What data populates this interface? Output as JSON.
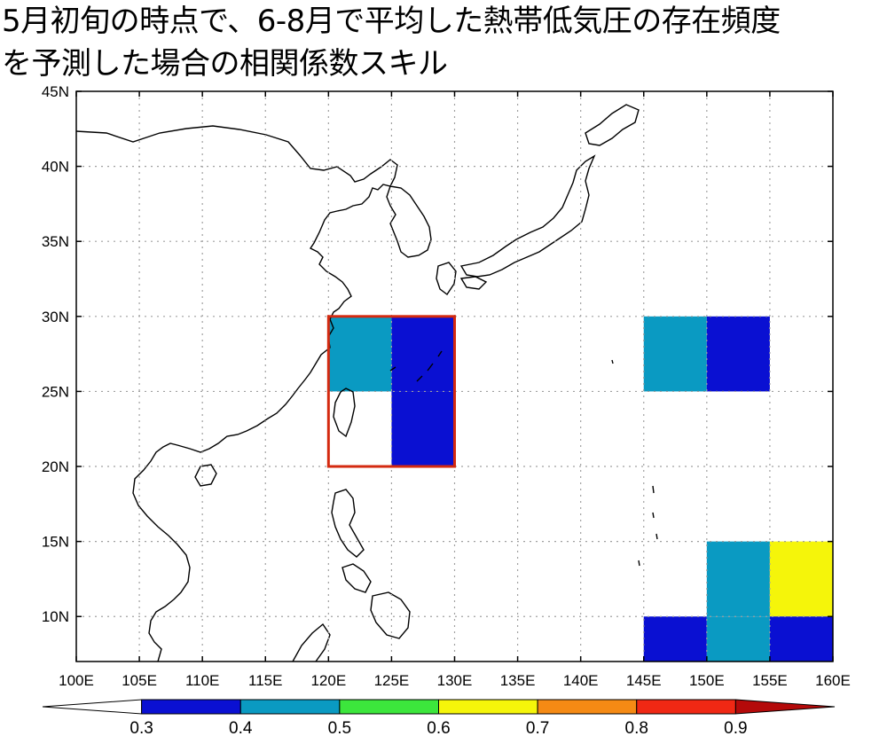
{
  "title": {
    "line1": "5月初旬の時点で、6-8月で平均した熱帯低気圧の存在頻度",
    "line2": "を予測した場合の相関係数スキル"
  },
  "map": {
    "lon_range": [
      100,
      160
    ],
    "lat_range": [
      7,
      45
    ],
    "lon_ticks": [
      "100E",
      "105E",
      "110E",
      "115E",
      "120E",
      "125E",
      "130E",
      "135E",
      "140E",
      "145E",
      "150E",
      "155E",
      "160E"
    ],
    "lat_ticks": [
      "10N",
      "15N",
      "20N",
      "25N",
      "30N",
      "35N",
      "40N",
      "45N"
    ],
    "gridlines": true,
    "cells": [
      {
        "lon": [
          120,
          125
        ],
        "lat": [
          25,
          30
        ],
        "value_bin": "0.4-0.5",
        "color": "#0a9ac2"
      },
      {
        "lon": [
          125,
          130
        ],
        "lat": [
          25,
          30
        ],
        "value_bin": "0.3-0.4",
        "color": "#0a10d2"
      },
      {
        "lon": [
          125,
          130
        ],
        "lat": [
          20,
          25
        ],
        "value_bin": "0.3-0.4",
        "color": "#0a10d2"
      },
      {
        "lon": [
          145,
          150
        ],
        "lat": [
          25,
          30
        ],
        "value_bin": "0.4-0.5",
        "color": "#0a9ac2"
      },
      {
        "lon": [
          150,
          155
        ],
        "lat": [
          25,
          30
        ],
        "value_bin": "0.3-0.4",
        "color": "#0a10d2"
      },
      {
        "lon": [
          150,
          155
        ],
        "lat": [
          10,
          15
        ],
        "value_bin": "0.4-0.5",
        "color": "#0a9ac2"
      },
      {
        "lon": [
          155,
          160
        ],
        "lat": [
          10,
          15
        ],
        "value_bin": "0.6-0.7",
        "color": "#f5f50a"
      },
      {
        "lon": [
          145,
          150
        ],
        "lat": [
          7,
          10
        ],
        "value_bin": "0.3-0.4",
        "color": "#0a10d2"
      },
      {
        "lon": [
          150,
          155
        ],
        "lat": [
          7,
          10
        ],
        "value_bin": "0.4-0.5",
        "color": "#0a9ac2"
      },
      {
        "lon": [
          155,
          160
        ],
        "lat": [
          7,
          10
        ],
        "value_bin": "0.3-0.4",
        "color": "#0a10d2"
      }
    ],
    "highlight_box": {
      "lon": [
        120,
        130
      ],
      "lat": [
        20,
        30
      ],
      "color": "#d42a10"
    }
  },
  "colorbar": {
    "labels": [
      "0.3",
      "0.4",
      "0.5",
      "0.6",
      "0.7",
      "0.8",
      "0.9"
    ],
    "colors": [
      "#ffffff",
      "#0a10d2",
      "#0a9ac2",
      "#3ce63c",
      "#f5f50a",
      "#f58a14",
      "#f02814",
      "#b40a0a"
    ]
  }
}
